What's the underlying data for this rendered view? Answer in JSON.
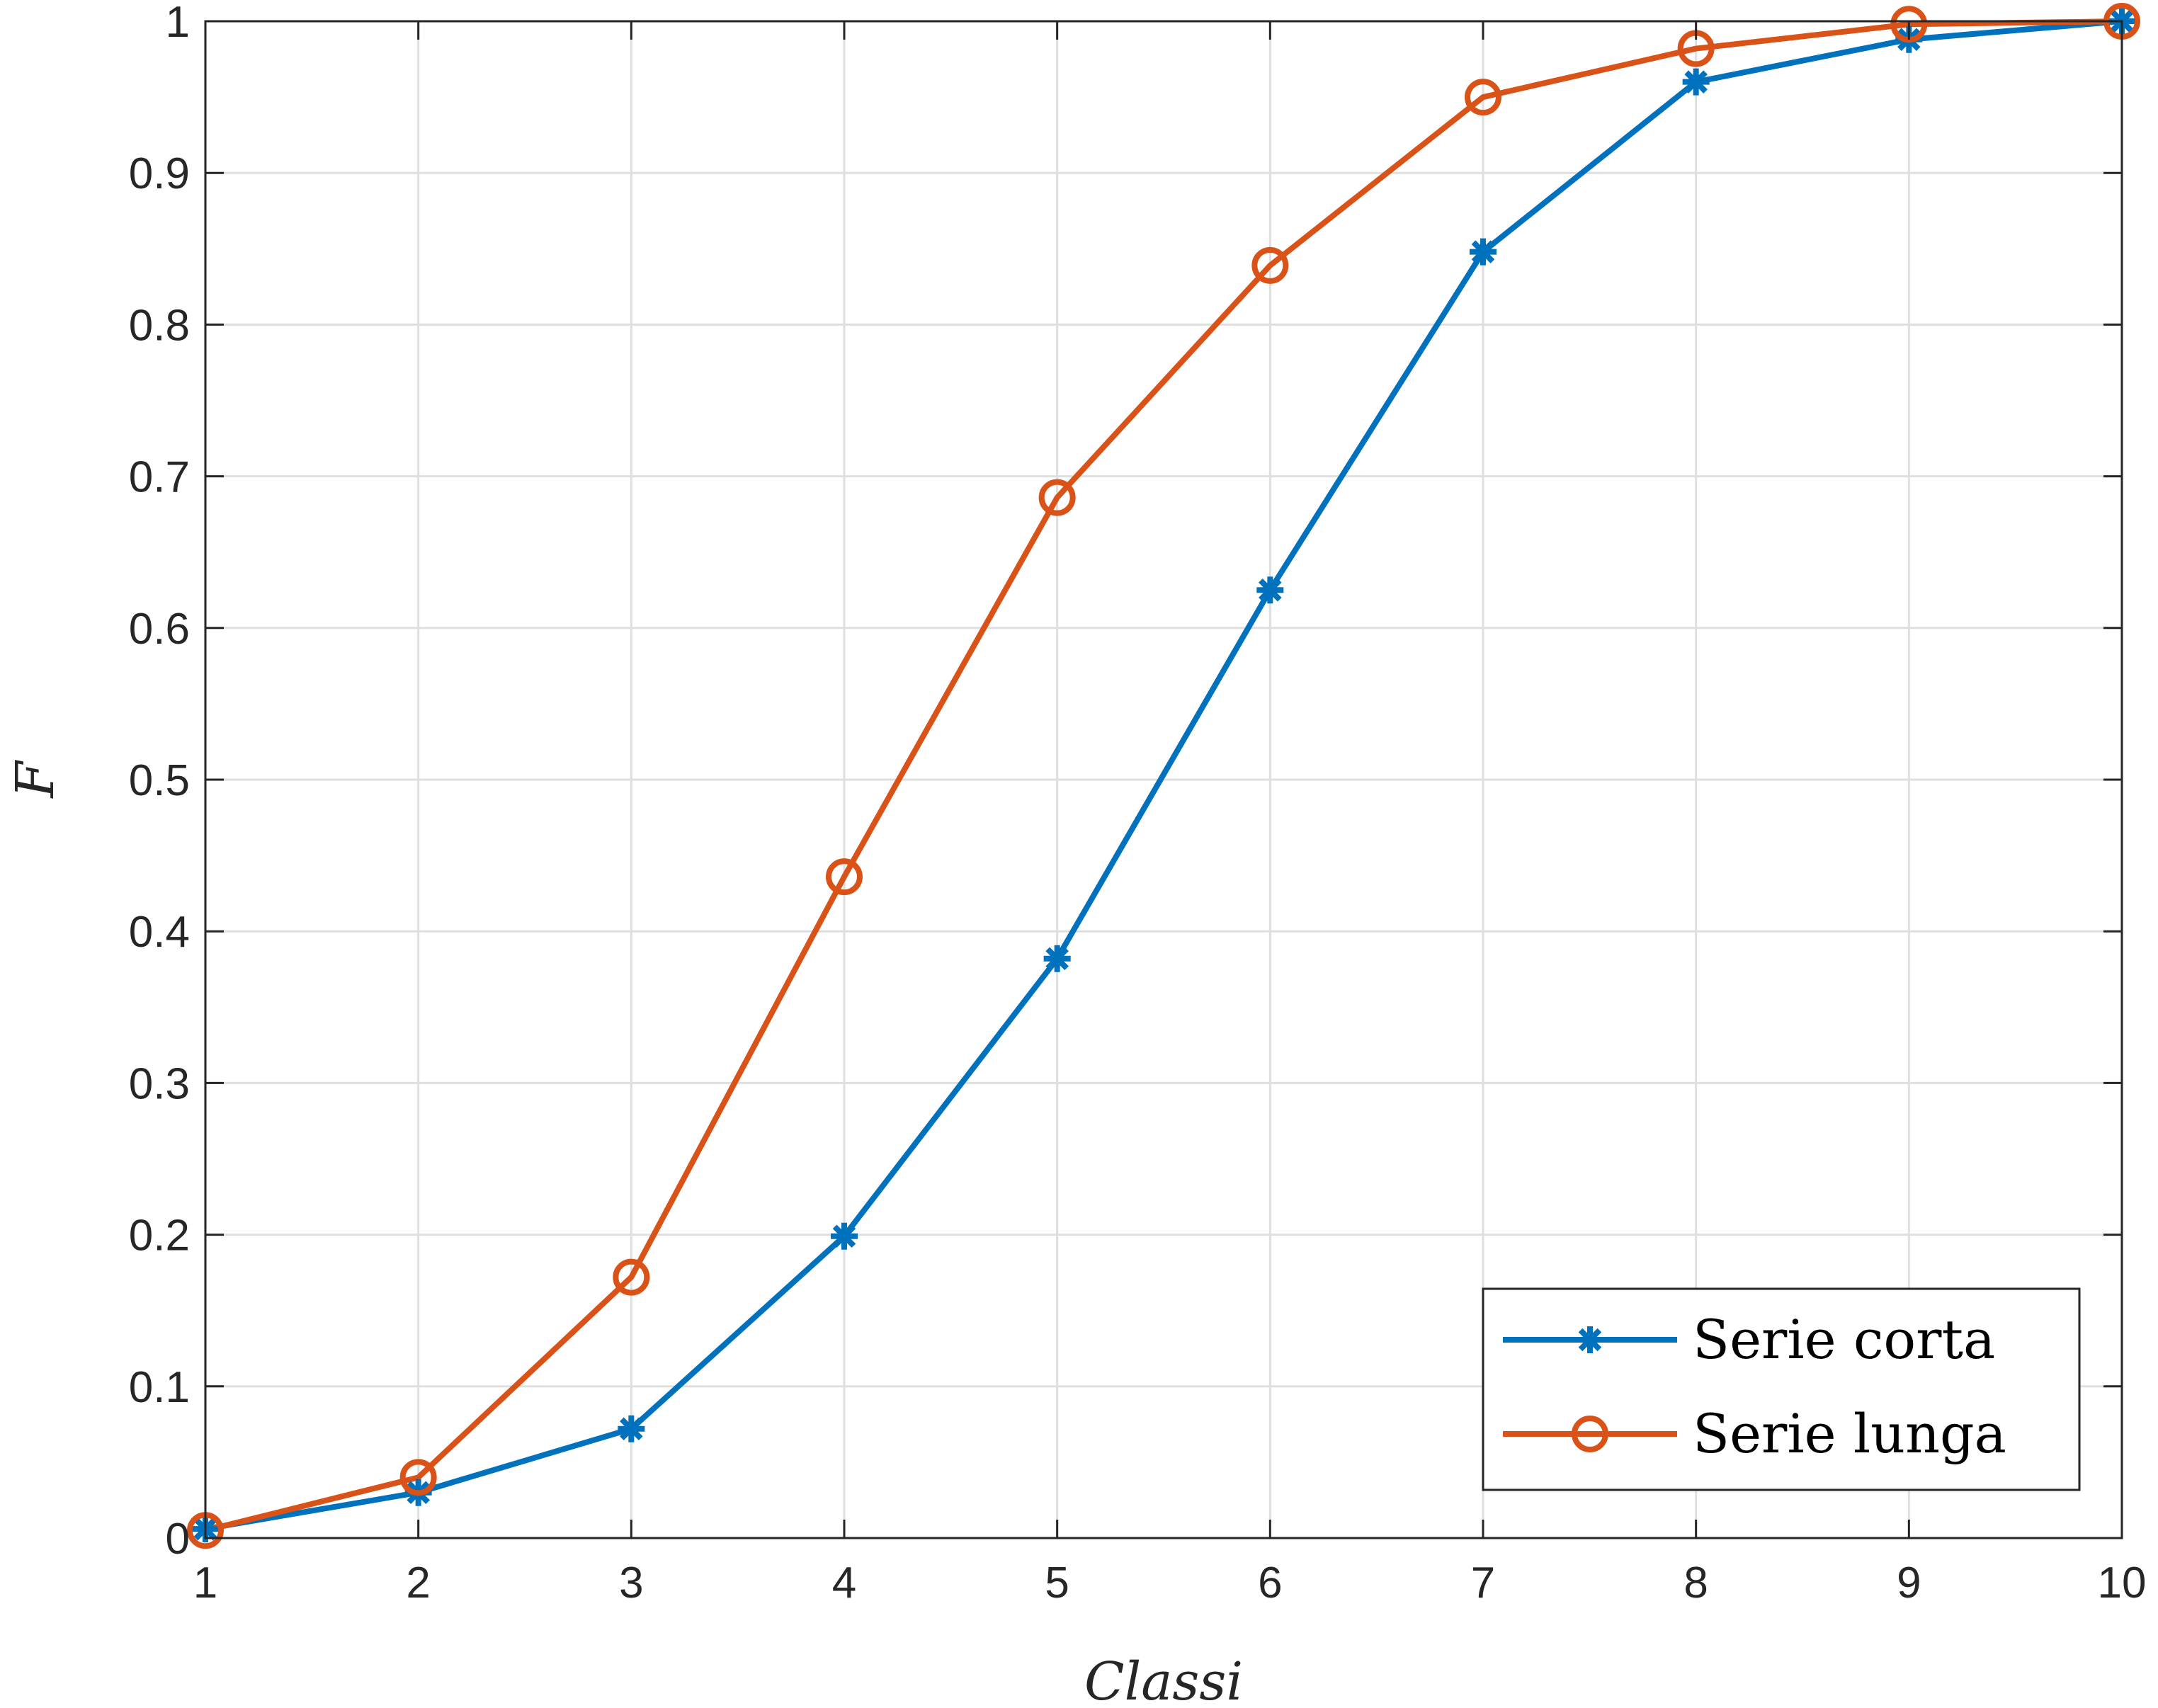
{
  "chart_data": {
    "type": "line",
    "xlabel": "Classi",
    "ylabel": "F",
    "xlim": [
      1,
      10
    ],
    "ylim": [
      0,
      1
    ],
    "x": [
      1,
      2,
      3,
      4,
      5,
      6,
      7,
      8,
      9,
      10
    ],
    "xticks": [
      "1",
      "2",
      "3",
      "4",
      "5",
      "6",
      "7",
      "8",
      "9",
      "10"
    ],
    "yticks": [
      "0",
      "0.1",
      "0.2",
      "0.3",
      "0.4",
      "0.5",
      "0.6",
      "0.7",
      "0.8",
      "0.9",
      "1"
    ],
    "grid": true,
    "legend_position": "bottom-right",
    "series": [
      {
        "name": "Serie corta",
        "color": "#0072BD",
        "marker": "asterisk",
        "values": [
          0.006,
          0.03,
          0.072,
          0.199,
          0.382,
          0.625,
          0.848,
          0.96,
          0.988,
          1.0
        ]
      },
      {
        "name": "Serie lunga",
        "color": "#D95319",
        "marker": "circle",
        "values": [
          0.005,
          0.04,
          0.172,
          0.436,
          0.686,
          0.839,
          0.95,
          0.982,
          0.998,
          1.0
        ]
      }
    ]
  }
}
